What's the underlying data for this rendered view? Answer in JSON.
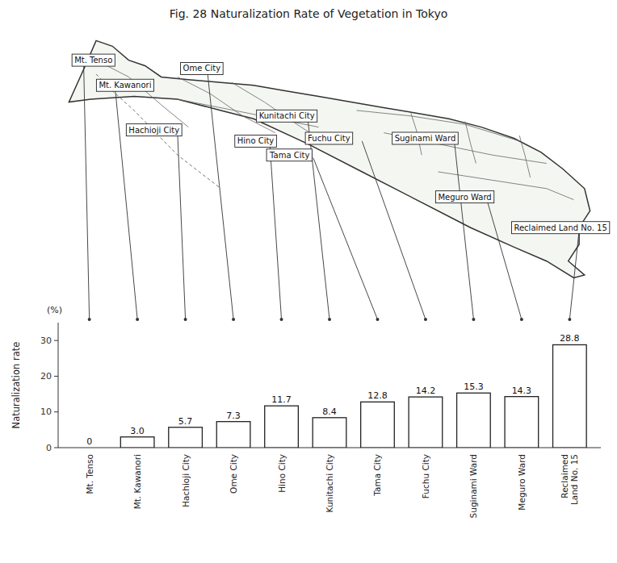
{
  "chart_data": {
    "type": "bar",
    "title": "Fig. 28  Naturalization Rate of Vegetation in Tokyo",
    "ylabel": "Naturalization rate",
    "categories": [
      "Mt. Tenso",
      "Mt. Kawanori",
      "Hachioji City",
      "Ome City",
      "Hino City",
      "Kunitachi City",
      "Tama City",
      "Fuchu City",
      "Suginami Ward",
      "Meguro Ward",
      "Reclaimed\nLand No. 15"
    ],
    "values": [
      0,
      3.0,
      5.7,
      7.3,
      11.7,
      8.4,
      12.8,
      14.2,
      15.3,
      14.3,
      28.8
    ],
    "value_labels": [
      "0",
      "3.0",
      "5.7",
      "7.3",
      "11.7",
      "8.4",
      "12.8",
      "14.2",
      "15.3",
      "14.3",
      "28.8"
    ],
    "data_labels": true,
    "color": "white",
    "ylim": [
      0,
      35
    ],
    "yticks": [
      0,
      10,
      20,
      30
    ],
    "grid": false,
    "annotations": [
      "(%)",
      "Mt. Tenso",
      "Mt. Kawanori",
      "Ome City",
      "Hachioji City",
      "Hino City",
      "Kunitachi City",
      "Tama City",
      "Fuchu City",
      "Suginami Ward",
      "Meguro Ward",
      "Reclaimed Land No. 15"
    ]
  }
}
